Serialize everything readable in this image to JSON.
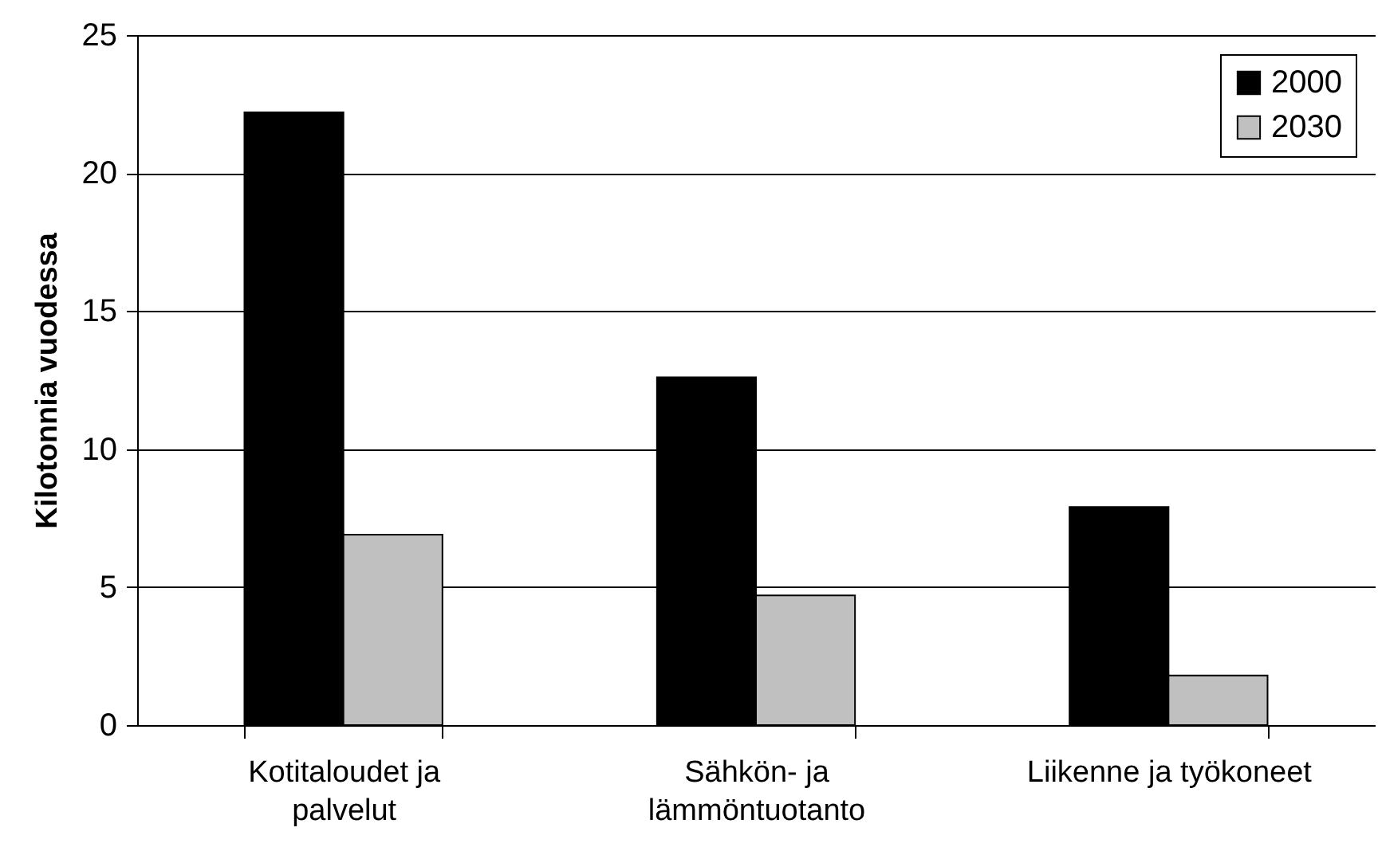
{
  "chart_data": {
    "type": "bar",
    "ylabel": "Kilotonnia vuodessa",
    "categories": [
      "Kotitaloudet ja palvelut",
      "Sähkön- ja lämmöntuotanto",
      "Liikenne ja työkoneet"
    ],
    "series": [
      {
        "name": "2000",
        "color": "#000000",
        "values": [
          22.2,
          12.6,
          7.9
        ]
      },
      {
        "name": "2030",
        "color": "#c0c0c0",
        "values": [
          6.9,
          4.7,
          1.8
        ]
      }
    ],
    "ylim": [
      0,
      25
    ],
    "yticks": [
      0,
      5,
      10,
      15,
      20,
      25
    ],
    "grid": "y",
    "legend": "top right"
  }
}
